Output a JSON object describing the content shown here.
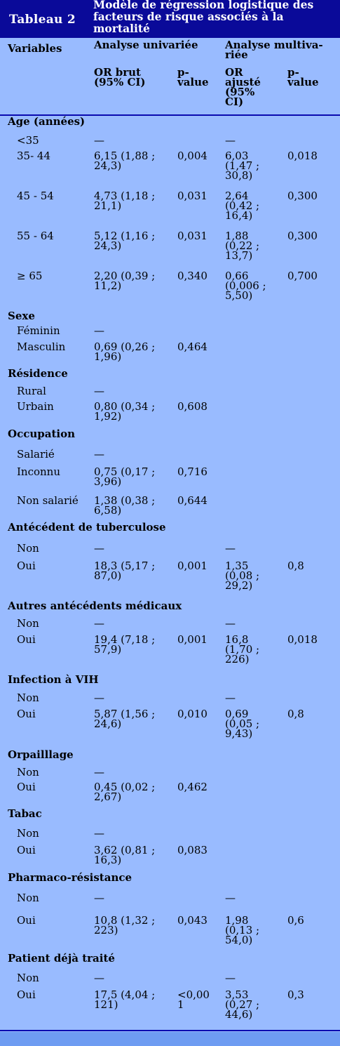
{
  "table": {
    "label": "Tableau 2",
    "title": "Modèle de régression logistique des facteurs de risque associés à la mortalité"
  },
  "columns": {
    "variables": "Variables",
    "univariate": "Analyse univariée",
    "multivariate": "Analyse multiva-riée",
    "or_brut": "OR brut (95% CI)",
    "pvalue_uni": "p-value",
    "or_ajuste": "OR ajusté (95% CI)",
    "pvalue_multi": "p-value"
  },
  "sections": [
    {
      "title": "Age (années)",
      "rows": [
        {
          "label": "<35",
          "or_brut": "—",
          "p_uni": "",
          "or_adj": "—",
          "p_multi": ""
        },
        {
          "label": "35- 44",
          "or_brut": "6,15 (1,88 ; 24,3)",
          "p_uni": "0,004",
          "or_adj": "6,03 (1,47 ; 30,8)",
          "p_multi": "0,018"
        },
        {
          "label": "45 - 54",
          "or_brut": "4,73 (1,18 ; 21,1)",
          "p_uni": "0,031",
          "or_adj": "2,64 (0,42 ; 16,4)",
          "p_multi": "0,300"
        },
        {
          "label": "55 - 64",
          "or_brut": "5,12 (1,16 ; 24,3)",
          "p_uni": "0,031",
          "or_adj": "1,88 (0,22 ; 13,7)",
          "p_multi": "0,300"
        },
        {
          "label": "≥ 65",
          "or_brut": "2,20 (0,39 ; 11,2)",
          "p_uni": "0,340",
          "or_adj": "0,66 (0,006 ; 5,50)",
          "p_multi": "0,700"
        }
      ]
    },
    {
      "title": "Sexe",
      "rows": [
        {
          "label": "Féminin",
          "or_brut": "—",
          "p_uni": "",
          "or_adj": "",
          "p_multi": ""
        },
        {
          "label": "Masculin",
          "or_brut": "0,69 (0,26 ; 1,96)",
          "p_uni": "0,464",
          "or_adj": "",
          "p_multi": ""
        }
      ]
    },
    {
      "title": "Résidence",
      "rows": [
        {
          "label": "Rural",
          "or_brut": "—",
          "p_uni": "",
          "or_adj": "",
          "p_multi": ""
        },
        {
          "label": "Urbain",
          "or_brut": "0,80 (0,34 ; 1,92)",
          "p_uni": "0,608",
          "or_adj": "",
          "p_multi": ""
        }
      ]
    },
    {
      "title": "Occupation",
      "rows": [
        {
          "label": "Salarié",
          "or_brut": "—",
          "p_uni": "",
          "or_adj": "",
          "p_multi": ""
        },
        {
          "label": "Inconnu",
          "or_brut": "0,75 (0,17 ; 3,96)",
          "p_uni": "0,716",
          "or_adj": "",
          "p_multi": ""
        },
        {
          "label": "Non salarié",
          "or_brut": "1,38 (0,38 ; 6,58)",
          "p_uni": "0,644",
          "or_adj": "",
          "p_multi": ""
        }
      ]
    },
    {
      "title": "Antécédent de tuberculose",
      "rows": [
        {
          "label": "Non",
          "or_brut": "—",
          "p_uni": "",
          "or_adj": "—",
          "p_multi": ""
        },
        {
          "label": "Oui",
          "or_brut": "18,3 (5,17 ; 87,0)",
          "p_uni": "0,001",
          "or_adj": "1,35 (0,08 ; 29,2)",
          "p_multi": "0,8"
        }
      ]
    },
    {
      "title": "Autres antécédents médicaux",
      "rows": [
        {
          "label": "Non",
          "or_brut": "—",
          "p_uni": "",
          "or_adj": "—",
          "p_multi": ""
        },
        {
          "label": "Oui",
          "or_brut": "19,4 (7,18 ; 57,9)",
          "p_uni": "0,001",
          "or_adj": "16,8 (1,70 ; 226)",
          "p_multi": "0,018"
        }
      ]
    },
    {
      "title": "Infection à VIH",
      "rows": [
        {
          "label": "Non",
          "or_brut": "—",
          "p_uni": "",
          "or_adj": "—",
          "p_multi": ""
        },
        {
          "label": "Oui",
          "or_brut": "5,87 (1,56 ; 24,6)",
          "p_uni": "0,010",
          "or_adj": "0,69 (0,05 ; 9,43)",
          "p_multi": "0,8"
        }
      ]
    },
    {
      "title": "Orpailllage",
      "rows": [
        {
          "label": "Non",
          "or_brut": "—",
          "p_uni": "",
          "or_adj": "",
          "p_multi": ""
        },
        {
          "label": "Oui",
          "or_brut": "0,45 (0,02 ; 2,67)",
          "p_uni": "0,462",
          "or_adj": "",
          "p_multi": ""
        }
      ]
    },
    {
      "title": "Tabac",
      "rows": [
        {
          "label": "Non",
          "or_brut": "—",
          "p_uni": "",
          "or_adj": "",
          "p_multi": ""
        },
        {
          "label": "Oui",
          "or_brut": "3,62 (0,81 ; 16,3)",
          "p_uni": "0,083",
          "or_adj": "",
          "p_multi": ""
        }
      ]
    },
    {
      "title": "Pharmaco-résistance",
      "rows": [
        {
          "label": "Non",
          "or_brut": "—",
          "p_uni": "",
          "or_adj": "—",
          "p_multi": ""
        },
        {
          "label": "Oui",
          "or_brut": "10,8 (1,32 ; 223)",
          "p_uni": "0,043",
          "or_adj": "1,98 (0,13 ; 54,0)",
          "p_multi": "0,6"
        }
      ]
    },
    {
      "title": "Patient déjà traité",
      "rows": [
        {
          "label": "Non",
          "or_brut": "—",
          "p_uni": "",
          "or_adj": "—",
          "p_multi": ""
        },
        {
          "label": "Oui",
          "or_brut": "17,5 (4,04 ; 121)",
          "p_uni": "<0,00 1",
          "or_adj": "3,53 (0,27 ; 44,6)",
          "p_multi": "0,3"
        }
      ]
    }
  ]
}
